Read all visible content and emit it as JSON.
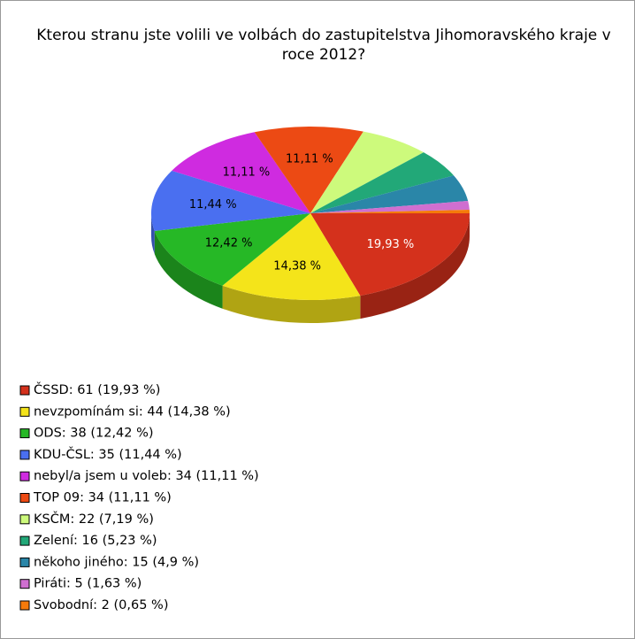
{
  "chart_data": {
    "type": "pie3d",
    "title": "Kterou stranu jste volili ve volbách do zastupitelstva Jihomoravského kraje v roce 2012?",
    "categories": [
      "ČSSD",
      "nevzpomínám si",
      "ODS",
      "KDU-ČSL",
      "nebyl/a jsem u voleb",
      "TOP 09",
      "KSČM",
      "Zelení",
      "někoho jiného",
      "Piráti",
      "Svobodní"
    ],
    "legend_labels": [
      "ČSSD: 61 (19,93 %)",
      "nevzpomínám si: 44 (14,38 %)",
      "ODS: 38 (12,42 %)",
      "KDU-ČSL: 35 (11,44 %)",
      "nebyl/a jsem u voleb: 34 (11,11 %)",
      "TOP 09: 34 (11,11 %)",
      "KSČM: 22 (7,19 %)",
      "Zelení: 16 (5,23 %)",
      "někoho jiného: 15 (4,9 %)",
      "Piráti: 5 (1,63 %)",
      "Svobodní: 2 (0,65 %)"
    ],
    "values": [
      19.93,
      14.38,
      12.42,
      11.44,
      11.11,
      11.11,
      7.19,
      5.23,
      4.9,
      1.63,
      0.65
    ],
    "value_labels": [
      "19,93 %",
      "14,38 %",
      "12,42 %",
      "11,44 %",
      "11,11 %",
      "11,11 %",
      null,
      null,
      null,
      null,
      null
    ],
    "colors": [
      "#d4311c",
      "#f4e41a",
      "#26b826",
      "#4a6ff0",
      "#cf2be0",
      "#ec4a14",
      "#cdfa7c",
      "#22a878",
      "#2a86a8",
      "#cf6fd0",
      "#f57a0a"
    ]
  }
}
